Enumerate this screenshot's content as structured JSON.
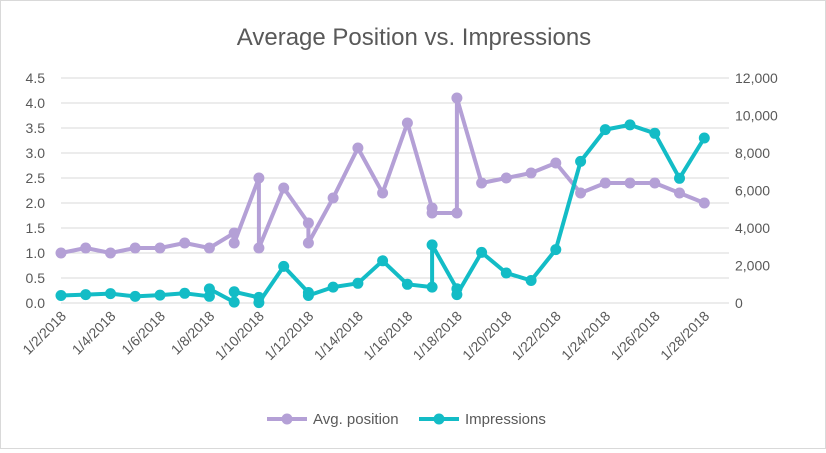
{
  "chart_data": {
    "type": "line",
    "title": "Average Position vs. Impressions",
    "colors": {
      "avg_position": "#b4a0d6",
      "impressions": "#13bcc6",
      "grid": "#d9d9d9",
      "text": "#595959"
    },
    "y_left": {
      "ylim": [
        0,
        4.5
      ],
      "ticks": [
        "0.0",
        "0.5",
        "1.0",
        "1.5",
        "2.0",
        "2.5",
        "3.0",
        "3.5",
        "4.0",
        "4.5"
      ]
    },
    "y_right": {
      "ylim": [
        0,
        12000
      ],
      "ticks": [
        "0",
        "2,000",
        "4,000",
        "6,000",
        "8,000",
        "10,000",
        "12,000"
      ]
    },
    "x_axis": {
      "start": "2018-01-02",
      "end": "2018-01-29",
      "tick_labels": [
        "1/2/2018",
        "1/4/2018",
        "1/6/2018",
        "1/8/2018",
        "1/10/2018",
        "1/12/2018",
        "1/14/2018",
        "1/16/2018",
        "1/18/2018",
        "1/20/2018",
        "1/22/2018",
        "1/24/2018",
        "1/26/2018",
        "1/28/2018"
      ]
    },
    "legend": {
      "position": "bottom",
      "items": [
        "Avg. position",
        "Impressions"
      ]
    },
    "series": [
      {
        "name": "Avg. position",
        "axis": "left",
        "points": [
          [
            "2018-01-02",
            1.0
          ],
          [
            "2018-01-03",
            1.1
          ],
          [
            "2018-01-04",
            1.0
          ],
          [
            "2018-01-05",
            1.1
          ],
          [
            "2018-01-06",
            1.1
          ],
          [
            "2018-01-07",
            1.2
          ],
          [
            "2018-01-08",
            1.1
          ],
          [
            "2018-01-09",
            1.4
          ],
          [
            "2018-01-09",
            1.2
          ],
          [
            "2018-01-10",
            2.5
          ],
          [
            "2018-01-10",
            1.1
          ],
          [
            "2018-01-11",
            2.3
          ],
          [
            "2018-01-12",
            1.6
          ],
          [
            "2018-01-12",
            1.2
          ],
          [
            "2018-01-13",
            2.1
          ],
          [
            "2018-01-14",
            3.1
          ],
          [
            "2018-01-15",
            2.2
          ],
          [
            "2018-01-16",
            3.6
          ],
          [
            "2018-01-17",
            1.9
          ],
          [
            "2018-01-17",
            1.8
          ],
          [
            "2018-01-18",
            1.8
          ],
          [
            "2018-01-18",
            4.1
          ],
          [
            "2018-01-19",
            2.4
          ],
          [
            "2018-01-20",
            2.5
          ],
          [
            "2018-01-21",
            2.6
          ],
          [
            "2018-01-22",
            2.8
          ],
          [
            "2018-01-23",
            2.2
          ],
          [
            "2018-01-24",
            2.4
          ],
          [
            "2018-01-25",
            2.4
          ],
          [
            "2018-01-26",
            2.4
          ],
          [
            "2018-01-27",
            2.2
          ],
          [
            "2018-01-28",
            2.0
          ]
        ]
      },
      {
        "name": "Impressions",
        "axis": "right",
        "points": [
          [
            "2018-01-02",
            400
          ],
          [
            "2018-01-03",
            450
          ],
          [
            "2018-01-04",
            500
          ],
          [
            "2018-01-05",
            350
          ],
          [
            "2018-01-06",
            420
          ],
          [
            "2018-01-07",
            520
          ],
          [
            "2018-01-08",
            360
          ],
          [
            "2018-01-08",
            750
          ],
          [
            "2018-01-09",
            50
          ],
          [
            "2018-01-09",
            600
          ],
          [
            "2018-01-10",
            300
          ],
          [
            "2018-01-10",
            20
          ],
          [
            "2018-01-11",
            1950
          ],
          [
            "2018-01-12",
            560
          ],
          [
            "2018-01-12",
            400
          ],
          [
            "2018-01-13",
            850
          ],
          [
            "2018-01-14",
            1050
          ],
          [
            "2018-01-15",
            2250
          ],
          [
            "2018-01-16",
            1000
          ],
          [
            "2018-01-17",
            850
          ],
          [
            "2018-01-17",
            3100
          ],
          [
            "2018-01-18",
            760
          ],
          [
            "2018-01-18",
            450
          ],
          [
            "2018-01-19",
            2700
          ],
          [
            "2018-01-20",
            1600
          ],
          [
            "2018-01-21",
            1200
          ],
          [
            "2018-01-22",
            2850
          ],
          [
            "2018-01-23",
            7550
          ],
          [
            "2018-01-24",
            9250
          ],
          [
            "2018-01-25",
            9500
          ],
          [
            "2018-01-26",
            9050
          ],
          [
            "2018-01-27",
            6650
          ],
          [
            "2018-01-28",
            8800
          ]
        ]
      }
    ]
  }
}
